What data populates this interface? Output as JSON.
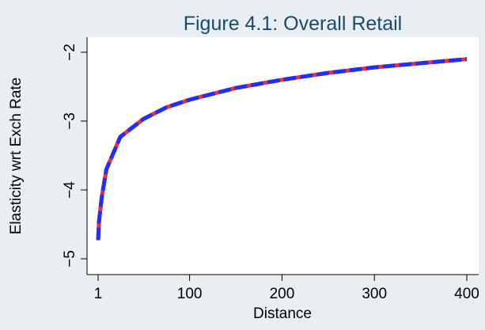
{
  "chart_data": {
    "type": "line",
    "title": "Figure 4.1:  Overall Retail",
    "xlabel": "Distance",
    "ylabel": "Elasticity wrt Exch Rate",
    "xlim": [
      0,
      410
    ],
    "ylim": [
      -5.25,
      -1.8
    ],
    "xticks": [
      1,
      100,
      200,
      300,
      400
    ],
    "xtick_labels": [
      "1",
      "100",
      "200",
      "300",
      "400"
    ],
    "yticks": [
      -5,
      -4,
      -3,
      -2
    ],
    "ytick_labels": [
      "−5",
      "−4",
      "−3",
      "−2"
    ],
    "grid": false,
    "legend": "none",
    "series": [
      {
        "color": "#ff2a2a",
        "style": "solid",
        "x": [
          1,
          2,
          5,
          10,
          25,
          50,
          75,
          100,
          150,
          200,
          250,
          300,
          350,
          400
        ],
        "y": [
          -4.73,
          -4.45,
          -4.1,
          -3.7,
          -3.23,
          -2.97,
          -2.8,
          -2.69,
          -2.52,
          -2.4,
          -2.3,
          -2.22,
          -2.16,
          -2.1
        ]
      },
      {
        "color": "#1f2fff",
        "style": "dashed",
        "x": [
          1,
          2,
          5,
          10,
          25,
          50,
          75,
          100,
          150,
          200,
          250,
          300,
          350,
          400
        ],
        "y": [
          -4.73,
          -4.45,
          -4.1,
          -3.7,
          -3.23,
          -2.97,
          -2.8,
          -2.69,
          -2.52,
          -2.4,
          -2.3,
          -2.22,
          -2.16,
          -2.1
        ]
      }
    ]
  }
}
